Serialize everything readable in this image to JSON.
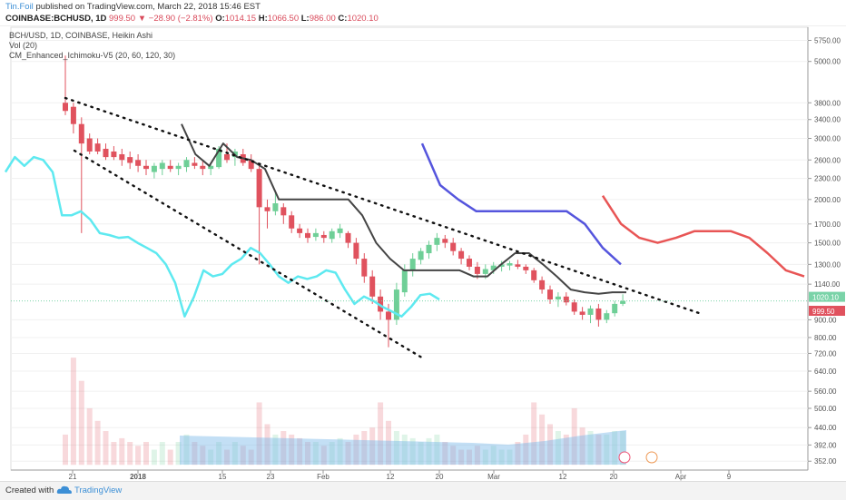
{
  "header": {
    "author": "Tin.Foil",
    "published_text": "published on TradingView.com, March 22, 2018 15:46 EST",
    "symbol": "COINBASE:BCHUSD, 1D",
    "price": "999.50",
    "change": "−28.90 (−2.81%)",
    "o_label": "O:",
    "o_val": "1014.15",
    "h_label": "H:",
    "h_val": "1066.50",
    "l_label": "L:",
    "l_val": "986.00",
    "c_label": "C:",
    "c_val": "1020.10"
  },
  "legend": {
    "line1": "BCH/USD, 1D, COINBASE, Heikin Ashi",
    "line2": "Vol (20)",
    "line3": "CM_Enhanced_Ichimoku-V5 (20, 60, 120, 30)"
  },
  "footer": {
    "created": "Created with",
    "brand": "TradingView"
  },
  "colors": {
    "bull": "#6fcf97",
    "bear": "#e0525e",
    "cyan": "#5ee9f0",
    "blue": "#5555dd",
    "red": "#e85555",
    "dark": "#444444",
    "volume_cloud": "#7ab8e8"
  },
  "chart_data": {
    "type": "candlestick",
    "y_scale": "log",
    "ylim": [
      340,
      6200
    ],
    "y_ticks": [
      352.0,
      392.0,
      440.0,
      500.0,
      560.0,
      640.0,
      720.0,
      800.0,
      900.0,
      1140.0,
      1300.0,
      1500.0,
      1700.0,
      2000.0,
      2300.0,
      2600.0,
      3000.0,
      3400.0,
      3800.0,
      5000.0,
      5750.0
    ],
    "x_ticks": [
      "21",
      "2018",
      "15",
      "23",
      "Feb",
      "12",
      "20",
      "Mar",
      "12",
      "20",
      "Apr",
      "9"
    ],
    "price_tags": [
      {
        "value": "1020.10",
        "color": "#7ad3a8"
      },
      {
        "value": "999.50",
        "color": "#e0525e"
      }
    ],
    "candles": [
      {
        "o": 3800,
        "h": 5200,
        "l": 3500,
        "c": 3600
      },
      {
        "o": 3700,
        "h": 3800,
        "l": 3100,
        "c": 3300
      },
      {
        "o": 3300,
        "h": 3450,
        "l": 1600,
        "c": 2900
      },
      {
        "o": 3000,
        "h": 3100,
        "l": 2700,
        "c": 2750
      },
      {
        "o": 2900,
        "h": 3000,
        "l": 2700,
        "c": 2750
      },
      {
        "o": 2800,
        "h": 2900,
        "l": 2600,
        "c": 2650
      },
      {
        "o": 2750,
        "h": 2850,
        "l": 2600,
        "c": 2650
      },
      {
        "o": 2700,
        "h": 2800,
        "l": 2500,
        "c": 2600
      },
      {
        "o": 2650,
        "h": 2750,
        "l": 2450,
        "c": 2550
      },
      {
        "o": 2600,
        "h": 2700,
        "l": 2400,
        "c": 2500
      },
      {
        "o": 2500,
        "h": 2600,
        "l": 2350,
        "c": 2450
      },
      {
        "o": 2400,
        "h": 2550,
        "l": 2300,
        "c": 2500
      },
      {
        "o": 2450,
        "h": 2600,
        "l": 2350,
        "c": 2550
      },
      {
        "o": 2500,
        "h": 2600,
        "l": 2400,
        "c": 2450
      },
      {
        "o": 2450,
        "h": 2550,
        "l": 2350,
        "c": 2500
      },
      {
        "o": 2480,
        "h": 2650,
        "l": 2400,
        "c": 2600
      },
      {
        "o": 2550,
        "h": 2650,
        "l": 2450,
        "c": 2500
      },
      {
        "o": 2500,
        "h": 2600,
        "l": 2350,
        "c": 2450
      },
      {
        "o": 2450,
        "h": 2550,
        "l": 2350,
        "c": 2500
      },
      {
        "o": 2480,
        "h": 2850,
        "l": 2450,
        "c": 2800
      },
      {
        "o": 2700,
        "h": 2900,
        "l": 2550,
        "c": 2600
      },
      {
        "o": 2650,
        "h": 2800,
        "l": 2500,
        "c": 2750
      },
      {
        "o": 2700,
        "h": 2800,
        "l": 2500,
        "c": 2550
      },
      {
        "o": 2600,
        "h": 2700,
        "l": 2400,
        "c": 2450
      },
      {
        "o": 2450,
        "h": 2500,
        "l": 1300,
        "c": 1900
      },
      {
        "o": 1900,
        "h": 2000,
        "l": 1650,
        "c": 1850
      },
      {
        "o": 1850,
        "h": 2100,
        "l": 1800,
        "c": 1950
      },
      {
        "o": 1900,
        "h": 1950,
        "l": 1700,
        "c": 1800
      },
      {
        "o": 1800,
        "h": 1850,
        "l": 1600,
        "c": 1650
      },
      {
        "o": 1650,
        "h": 1700,
        "l": 1550,
        "c": 1600
      },
      {
        "o": 1600,
        "h": 1650,
        "l": 1500,
        "c": 1550
      },
      {
        "o": 1560,
        "h": 1650,
        "l": 1520,
        "c": 1600
      },
      {
        "o": 1580,
        "h": 1620,
        "l": 1500,
        "c": 1550
      },
      {
        "o": 1540,
        "h": 1650,
        "l": 1500,
        "c": 1620
      },
      {
        "o": 1600,
        "h": 1700,
        "l": 1550,
        "c": 1650
      },
      {
        "o": 1600,
        "h": 1620,
        "l": 1450,
        "c": 1500
      },
      {
        "o": 1500,
        "h": 1550,
        "l": 1300,
        "c": 1350
      },
      {
        "o": 1350,
        "h": 1400,
        "l": 1150,
        "c": 1200
      },
      {
        "o": 1200,
        "h": 1250,
        "l": 1000,
        "c": 1050
      },
      {
        "o": 1050,
        "h": 1100,
        "l": 900,
        "c": 950
      },
      {
        "o": 950,
        "h": 1000,
        "l": 750,
        "c": 900
      },
      {
        "o": 900,
        "h": 1150,
        "l": 870,
        "c": 1100
      },
      {
        "o": 1080,
        "h": 1300,
        "l": 1050,
        "c": 1250
      },
      {
        "o": 1250,
        "h": 1400,
        "l": 1200,
        "c": 1350
      },
      {
        "o": 1340,
        "h": 1450,
        "l": 1300,
        "c": 1420
      },
      {
        "o": 1400,
        "h": 1520,
        "l": 1350,
        "c": 1480
      },
      {
        "o": 1480,
        "h": 1600,
        "l": 1420,
        "c": 1550
      },
      {
        "o": 1540,
        "h": 1580,
        "l": 1450,
        "c": 1500
      },
      {
        "o": 1500,
        "h": 1550,
        "l": 1380,
        "c": 1420
      },
      {
        "o": 1420,
        "h": 1450,
        "l": 1300,
        "c": 1350
      },
      {
        "o": 1350,
        "h": 1380,
        "l": 1250,
        "c": 1280
      },
      {
        "o": 1280,
        "h": 1320,
        "l": 1180,
        "c": 1220
      },
      {
        "o": 1220,
        "h": 1300,
        "l": 1180,
        "c": 1260
      },
      {
        "o": 1250,
        "h": 1320,
        "l": 1220,
        "c": 1290
      },
      {
        "o": 1280,
        "h": 1330,
        "l": 1240,
        "c": 1300
      },
      {
        "o": 1290,
        "h": 1330,
        "l": 1250,
        "c": 1310
      },
      {
        "o": 1300,
        "h": 1340,
        "l": 1260,
        "c": 1280
      },
      {
        "o": 1280,
        "h": 1300,
        "l": 1220,
        "c": 1250
      },
      {
        "o": 1250,
        "h": 1270,
        "l": 1150,
        "c": 1170
      },
      {
        "o": 1170,
        "h": 1200,
        "l": 1070,
        "c": 1100
      },
      {
        "o": 1100,
        "h": 1130,
        "l": 1000,
        "c": 1030
      },
      {
        "o": 1030,
        "h": 1080,
        "l": 980,
        "c": 1050
      },
      {
        "o": 1050,
        "h": 1080,
        "l": 990,
        "c": 1010
      },
      {
        "o": 1010,
        "h": 1030,
        "l": 930,
        "c": 950
      },
      {
        "o": 950,
        "h": 980,
        "l": 900,
        "c": 930
      },
      {
        "o": 930,
        "h": 990,
        "l": 880,
        "c": 970
      },
      {
        "o": 970,
        "h": 1000,
        "l": 860,
        "c": 900
      },
      {
        "o": 900,
        "h": 960,
        "l": 880,
        "c": 940
      },
      {
        "o": 940,
        "h": 1020,
        "l": 920,
        "c": 1000
      },
      {
        "o": 1000,
        "h": 1066,
        "l": 986,
        "c": 1020
      }
    ],
    "volume": [
      420,
      700,
      600,
      500,
      460,
      430,
      400,
      410,
      400,
      390,
      400,
      380,
      400,
      380,
      400,
      420,
      400,
      390,
      380,
      400,
      380,
      400,
      390,
      380,
      520,
      450,
      420,
      430,
      420,
      410,
      400,
      400,
      390,
      400,
      410,
      400,
      420,
      430,
      440,
      520,
      460,
      430,
      420,
      410,
      400,
      410,
      420,
      400,
      390,
      380,
      380,
      390,
      380,
      390,
      380,
      380,
      400,
      420,
      520,
      480,
      450,
      430,
      420,
      500,
      440,
      430,
      420,
      420,
      430,
      430
    ],
    "series": [
      {
        "name": "cyan",
        "values": [
          2400,
          2650,
          2500,
          2650,
          2600,
          2400,
          1800,
          1800,
          1850,
          1750,
          1600,
          1580,
          1550,
          1560,
          1500,
          1450,
          1400,
          1300,
          1150,
          920,
          1050,
          1250,
          1200,
          1220,
          1300,
          1350,
          1450,
          1400,
          1300,
          1200,
          1150,
          1200,
          1180,
          1200,
          1250,
          1230,
          1100,
          1000,
          1050,
          1020,
          980,
          950,
          920,
          980,
          1060,
          1070,
          1030
        ]
      },
      {
        "name": "dark",
        "values": [
          3300,
          2700,
          2500,
          2900,
          2650,
          2600,
          2450,
          2000,
          2000,
          2000,
          2000,
          2000,
          2000,
          1800,
          1500,
          1350,
          1250,
          1250,
          1250,
          1250,
          1250,
          1200,
          1200,
          1300,
          1400,
          1400,
          1300,
          1200,
          1100,
          1080,
          1070,
          1080,
          1080
        ]
      },
      {
        "name": "blue",
        "values": [
          2900,
          2200,
          2000,
          1850,
          1850,
          1850,
          1850,
          1850,
          1850,
          1700,
          1450,
          1300
        ]
      },
      {
        "name": "red",
        "values": [
          2050,
          1700,
          1550,
          1500,
          1550,
          1620,
          1620,
          1620,
          1550,
          1400,
          1250,
          1200
        ]
      }
    ]
  }
}
